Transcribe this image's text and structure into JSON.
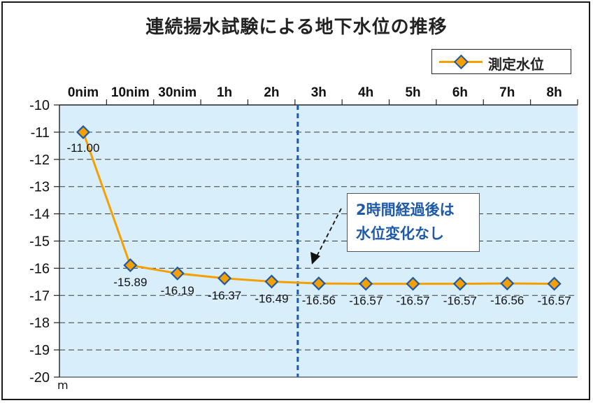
{
  "title": "連続揚水試験による地下水位の推移",
  "legend": {
    "label": "測定水位"
  },
  "unit": "m",
  "annotation": {
    "line1": "2時間経過後は",
    "line2": "水位変化なし"
  },
  "colors": {
    "plot_background": "#d9eefb",
    "series_line": "#f5a000",
    "marker_border": "#1f5aa8",
    "marker_fill": "#f5a000",
    "divider": "#1f5aa8",
    "annotation_text": "#1f5aa8"
  },
  "chart_data": {
    "type": "line",
    "title": "連続揚水試験による地下水位の推移",
    "categories": [
      "0nim",
      "10nim",
      "30nim",
      "1h",
      "2h",
      "3h",
      "4h",
      "5h",
      "6h",
      "7h",
      "8h"
    ],
    "series": [
      {
        "name": "測定水位",
        "values": [
          -11.0,
          -15.89,
          -16.19,
          -16.37,
          -16.49,
          -16.56,
          -16.57,
          -16.57,
          -16.57,
          -16.56,
          -16.57
        ],
        "labels": [
          "-11.00",
          "-15.89",
          "-16.19",
          "-16.37",
          "-16.49",
          "-16.56",
          "-16.57",
          "-16.57",
          "-16.57",
          "-16.56",
          "-16.57"
        ]
      }
    ],
    "yticks": [
      "-10",
      "-11",
      "-12",
      "-13",
      "-14",
      "-15",
      "-16",
      "-17",
      "-18",
      "-19",
      "-20"
    ],
    "ylim": [
      -20,
      -10
    ],
    "ylabel": "m",
    "grid": "horizontal dashed",
    "legend_position": "top-right",
    "vertical_divider_after_category": "2h",
    "annotation": "2時間経過後は 水位変化なし"
  }
}
